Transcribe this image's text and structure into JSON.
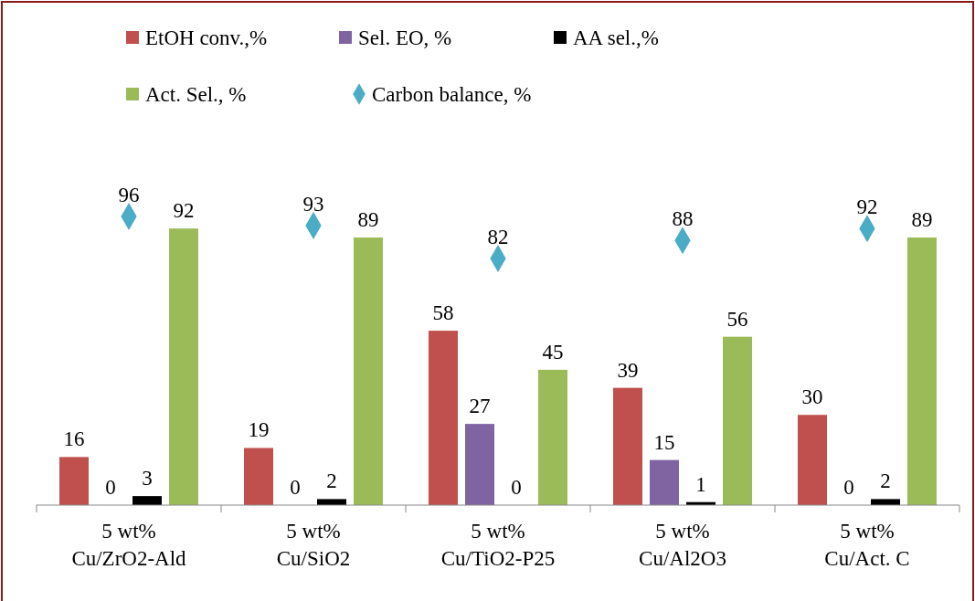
{
  "chart_data": {
    "type": "bar",
    "categories": [
      "5 wt%\nCu/ZrO2-Ald",
      "5 wt%\nCu/SiO2",
      "5 wt%\nCu/TiO2-P25",
      "5 wt%\nCu/Al2O3",
      "5 wt%\nCu/Act. C"
    ],
    "series": [
      {
        "name": "EtOH conv.,%",
        "color": "#c0504d",
        "values": [
          16,
          19,
          58,
          39,
          30
        ]
      },
      {
        "name": "Sel. EO, %",
        "color": "#8064a2",
        "values": [
          0,
          0,
          27,
          15,
          0
        ]
      },
      {
        "name": "AA sel.,%",
        "color": "#000000",
        "values": [
          3,
          2,
          0,
          1,
          2
        ]
      },
      {
        "name": "Act. Sel., %",
        "color": "#9bbb59",
        "values": [
          92,
          89,
          45,
          56,
          89
        ]
      },
      {
        "name": "Carbon balance, %",
        "color": "#4bacc6",
        "type": "scatter",
        "marker": "diamond",
        "values": [
          96,
          93,
          82,
          88,
          92
        ]
      }
    ],
    "data_labels": true,
    "legend": "top",
    "grid": false
  }
}
